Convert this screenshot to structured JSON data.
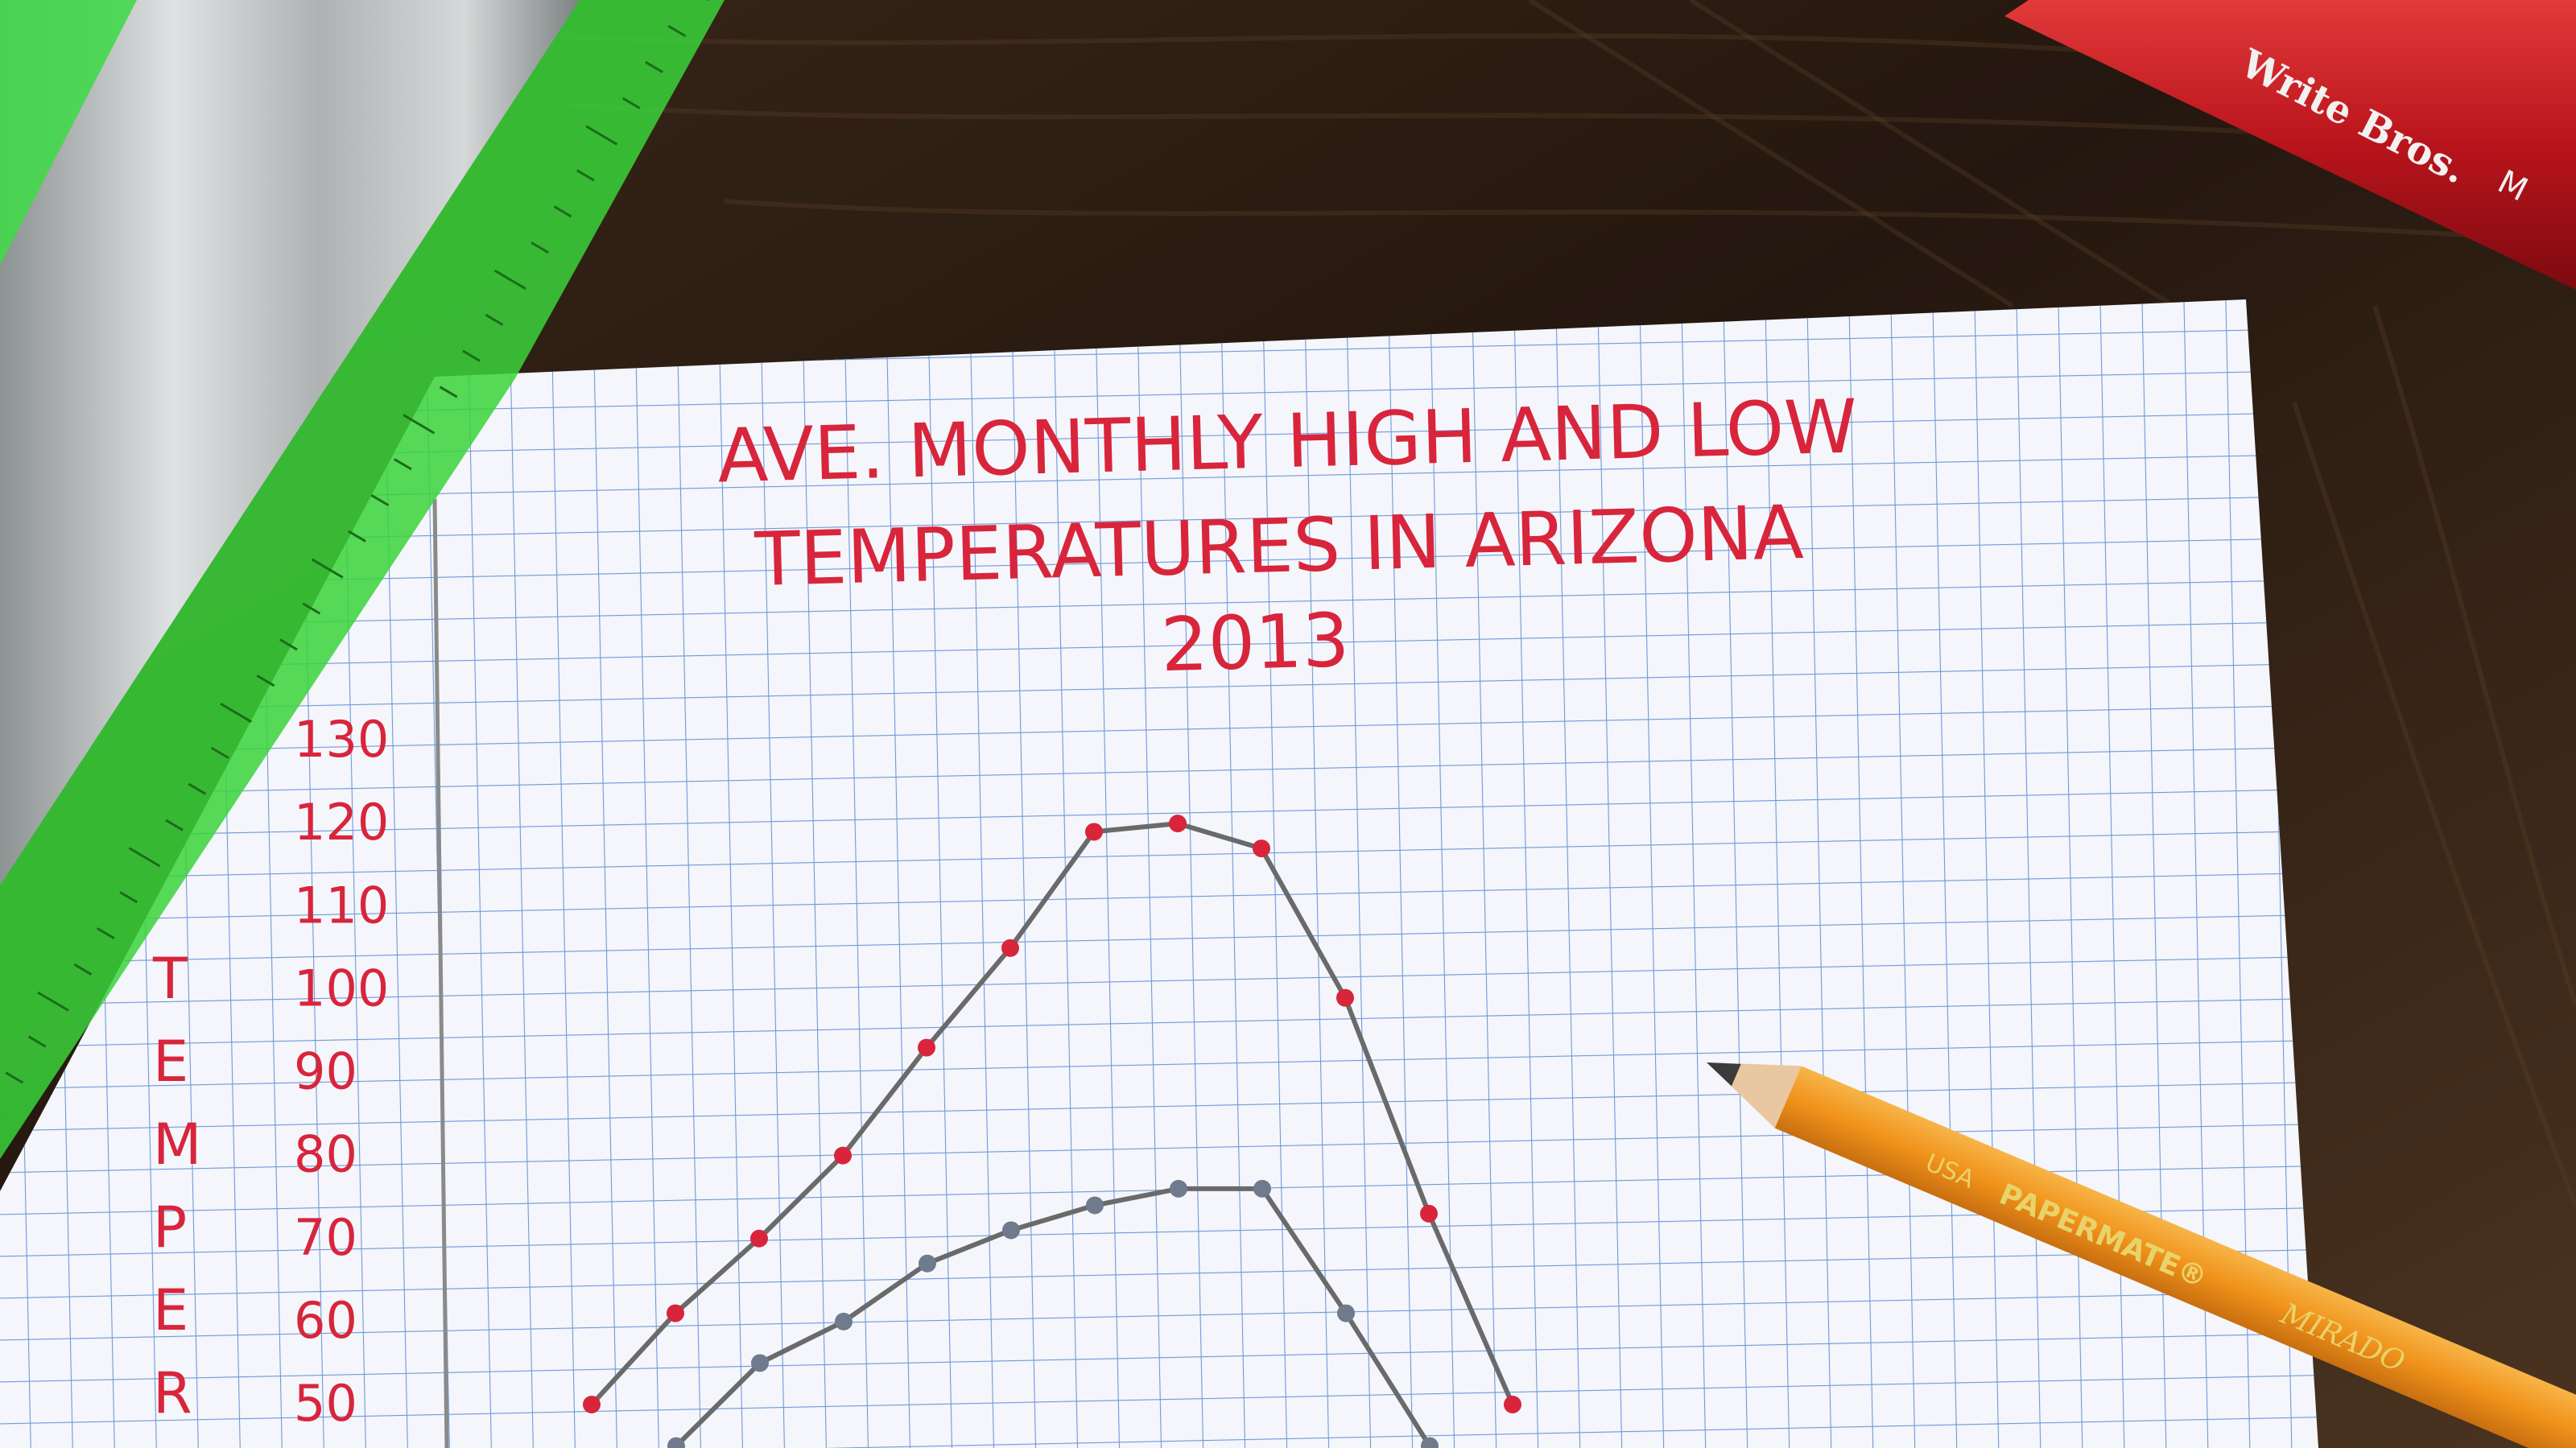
{
  "photo": {
    "description_free": true,
    "colors": {
      "wood_dark": "#24170f",
      "wood_mid": "#3a2819",
      "wood_light": "#5a4029",
      "paper": "#f4f6fb",
      "grid_line": "#6f97d8",
      "ink_red": "#d8253b",
      "graphite": "#6a6a6a",
      "ruler_green": "#39d43a",
      "ruler_metal": "#b8bcbc",
      "pencil_orange": "#f29a1f",
      "pencil_red": "#c01c22"
    }
  },
  "chart_title": {
    "line1": "AVE. MONTHLY HIGH AND LOW",
    "line2": "TEMPERATURES IN ARIZONA",
    "line3": "2013"
  },
  "y_axis": {
    "label_letters": [
      "T",
      "E",
      "M",
      "P",
      "E",
      "R"
    ],
    "ticks": [
      "130",
      "120",
      "110",
      "100",
      "90",
      "80",
      "70",
      "60",
      "50"
    ]
  },
  "red_pencil_text": [
    "Write Bros.",
    "M"
  ],
  "orange_pencil_text": [
    "USA",
    "PAPERMATE®",
    "MIRADO"
  ],
  "chart_data": {
    "type": "line",
    "title": "AVE. MONTHLY HIGH AND LOW TEMPERATURES IN ARIZONA 2013",
    "ylim": [
      50,
      130
    ],
    "y_ticks": [
      130,
      120,
      110,
      100,
      90,
      80,
      70,
      60,
      50
    ],
    "x": [
      1,
      2,
      3,
      4,
      5,
      6,
      7,
      8,
      9,
      10,
      11,
      12
    ],
    "series": [
      {
        "values": [
          50,
          61,
          70,
          80,
          93,
          105,
          119,
          120,
          117,
          99,
          73,
          50
        ]
      },
      {
        "values": [
          45,
          55,
          60,
          67,
          71,
          74,
          76,
          76,
          61,
          45,
          null,
          null
        ]
      }
    ]
  }
}
